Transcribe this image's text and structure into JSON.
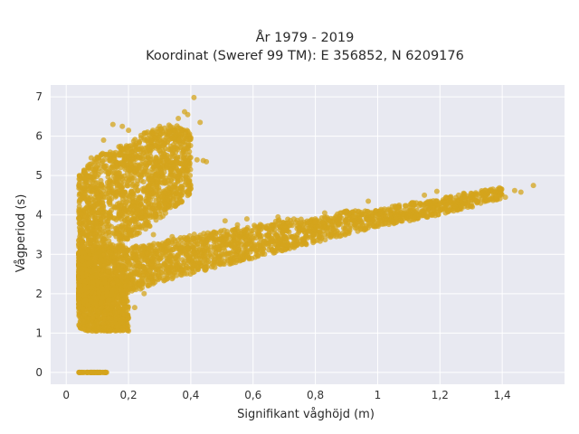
{
  "chart_data": {
    "type": "scatter",
    "title_line1": "År 1979 - 2019",
    "title_line2": "Koordinat (Sweref 99 TM): E 356852, N 6209176",
    "xlabel": "Signifikant våghöjd (m)",
    "ylabel": "Vågperiod (s)",
    "xlim": [
      -0.05,
      1.6
    ],
    "ylim": [
      -0.3,
      7.3
    ],
    "x_ticks": [
      0,
      0.2,
      0.4,
      0.6,
      0.8,
      1.0,
      1.2,
      1.4
    ],
    "x_tick_labels": [
      "0",
      "0,2",
      "0,4",
      "0,6",
      "0,8",
      "1",
      "1,2",
      "1,4"
    ],
    "y_ticks": [
      0,
      1,
      2,
      3,
      4,
      5,
      6,
      7
    ],
    "y_tick_labels": [
      "0",
      "1",
      "2",
      "3",
      "4",
      "5",
      "6",
      "7"
    ],
    "grid": true,
    "background_color": "#e8e9f1",
    "point_color": "#d4a41c",
    "point_opacity": 0.75,
    "clusters": {
      "zero_period": {
        "x_range": [
          0.04,
          0.13
        ],
        "y": 0.0
      },
      "main_band": [
        [
          0.04,
          1.6,
          3.1
        ],
        [
          0.1,
          1.7,
          3.2
        ],
        [
          0.2,
          2.0,
          3.2
        ],
        [
          0.3,
          2.3,
          3.3
        ],
        [
          0.4,
          2.5,
          3.5
        ],
        [
          0.5,
          2.7,
          3.6
        ],
        [
          0.6,
          2.9,
          3.75
        ],
        [
          0.7,
          3.1,
          3.9
        ],
        [
          0.8,
          3.3,
          3.9
        ],
        [
          0.9,
          3.5,
          4.1
        ],
        [
          1.0,
          3.7,
          4.15
        ],
        [
          1.1,
          3.85,
          4.3
        ],
        [
          1.2,
          4.0,
          4.4
        ],
        [
          1.3,
          4.2,
          4.6
        ],
        [
          1.4,
          4.4,
          4.7
        ]
      ],
      "swell_band": [
        [
          0.04,
          2.0,
          5.0
        ],
        [
          0.1,
          2.2,
          5.5
        ],
        [
          0.15,
          3.0,
          5.7
        ],
        [
          0.2,
          3.4,
          5.9
        ],
        [
          0.25,
          3.6,
          6.1
        ],
        [
          0.3,
          3.9,
          6.2
        ],
        [
          0.35,
          4.2,
          6.3
        ],
        [
          0.4,
          4.5,
          6.1
        ]
      ],
      "low_cluster": {
        "x_range": [
          0.04,
          0.2
        ],
        "y_range": [
          1.05,
          2.4
        ]
      }
    },
    "outliers": [
      [
        0.41,
        6.98
      ],
      [
        0.38,
        6.62
      ],
      [
        0.36,
        6.45
      ],
      [
        0.39,
        6.55
      ],
      [
        0.43,
        6.35
      ],
      [
        0.08,
        5.45
      ],
      [
        0.07,
        5.25
      ],
      [
        0.06,
        4.9
      ],
      [
        0.09,
        5.1
      ],
      [
        0.12,
        5.9
      ],
      [
        0.15,
        6.3
      ],
      [
        0.2,
        6.15
      ],
      [
        0.18,
        6.25
      ],
      [
        0.3,
        6.25
      ],
      [
        0.33,
        6.28
      ],
      [
        0.42,
        5.4
      ],
      [
        0.44,
        5.38
      ],
      [
        0.45,
        5.35
      ],
      [
        0.37,
        4.5
      ],
      [
        1.5,
        4.75
      ],
      [
        1.46,
        4.58
      ],
      [
        1.44,
        4.62
      ],
      [
        1.41,
        4.45
      ],
      [
        1.39,
        4.48
      ],
      [
        1.34,
        4.57
      ],
      [
        1.32,
        4.52
      ],
      [
        1.3,
        4.55
      ],
      [
        1.26,
        4.5
      ],
      [
        1.22,
        4.45
      ],
      [
        1.19,
        4.6
      ],
      [
        1.15,
        4.5
      ],
      [
        0.97,
        4.35
      ],
      [
        0.96,
        4.1
      ],
      [
        0.9,
        4.1
      ],
      [
        0.83,
        4.05
      ],
      [
        0.8,
        3.9
      ],
      [
        0.68,
        3.95
      ],
      [
        0.58,
        3.9
      ],
      [
        0.51,
        3.85
      ],
      [
        0.55,
        3.75
      ],
      [
        0.44,
        3.38
      ],
      [
        0.39,
        3.3
      ],
      [
        0.34,
        3.45
      ],
      [
        0.28,
        3.5
      ],
      [
        0.2,
        3.1
      ],
      [
        0.22,
        1.65
      ],
      [
        0.25,
        2.0
      ],
      [
        0.2,
        1.38
      ],
      [
        0.18,
        1.5
      ]
    ]
  }
}
